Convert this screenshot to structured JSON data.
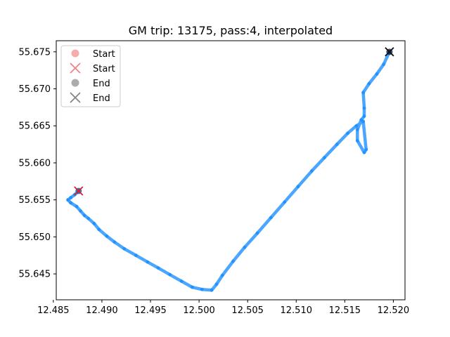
{
  "chart_data": {
    "type": "scatter",
    "title": "GM trip: 13175, pass:4, interpolated",
    "xlabel": "",
    "ylabel": "",
    "xlim": [
      12.4853,
      12.5212
    ],
    "ylim": [
      55.6415,
      55.6765
    ],
    "xticks": [
      "12.485",
      "12.490",
      "12.495",
      "12.500",
      "12.505",
      "12.510",
      "12.515",
      "12.520"
    ],
    "yticks": [
      "55.645",
      "55.650",
      "55.655",
      "55.660",
      "55.665",
      "55.670",
      "55.675"
    ],
    "grid": false,
    "legend_position": "top-left",
    "legend": [
      {
        "label": "Start",
        "marker": "circle",
        "color": "#f08080"
      },
      {
        "label": "Start",
        "marker": "x",
        "color": "#f08080"
      },
      {
        "label": "End",
        "marker": "circle",
        "color": "#808080"
      },
      {
        "label": "End",
        "marker": "x",
        "color": "#808080"
      }
    ],
    "series": [
      {
        "color": "#1e90ff",
        "x": [
          12.4876,
          12.4872,
          12.4868,
          12.4865,
          12.4868,
          12.4874,
          12.4878,
          12.4882,
          12.4886,
          12.4892,
          12.4897,
          12.4905,
          12.4913,
          12.4923,
          12.4935,
          12.4947,
          12.4958,
          12.497,
          12.4982,
          12.4993,
          12.5003,
          12.5013,
          12.5018,
          12.5024,
          12.5035,
          12.5047,
          12.506,
          12.5074,
          12.5088,
          12.5102,
          12.5116,
          12.5129,
          12.5142,
          12.5153,
          12.5162,
          12.5169,
          12.5172,
          12.517,
          12.5163,
          12.5163,
          12.5167,
          12.517,
          12.517,
          12.5169,
          12.5175,
          12.5183,
          12.519,
          12.5196
        ],
        "y": [
          55.6562,
          55.6557,
          55.6553,
          55.655,
          55.6546,
          55.6541,
          55.6535,
          55.6529,
          55.6525,
          55.6518,
          55.651,
          55.6501,
          55.6493,
          55.6484,
          55.6475,
          55.6466,
          55.6458,
          55.6449,
          55.644,
          55.6432,
          55.6429,
          55.6428,
          55.6436,
          55.6448,
          55.6467,
          55.6486,
          55.6505,
          55.6526,
          55.6547,
          55.6568,
          55.6589,
          55.6607,
          55.6625,
          55.664,
          55.665,
          55.6656,
          55.6618,
          55.6614,
          55.663,
          55.6645,
          55.6658,
          55.6663,
          55.6674,
          55.6695,
          55.6707,
          55.672,
          55.6733,
          55.675
        ]
      }
    ],
    "start": {
      "x": 12.4876,
      "y": 55.6562
    },
    "end": {
      "x": 12.5196,
      "y": 55.675
    }
  }
}
